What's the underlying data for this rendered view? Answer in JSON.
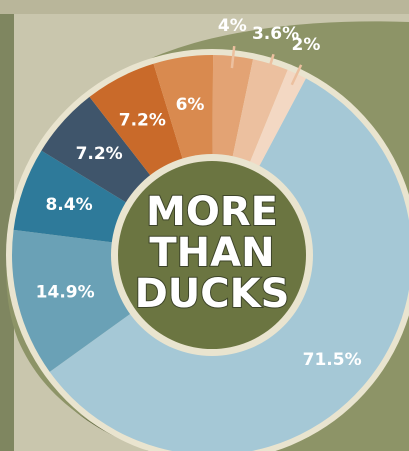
{
  "chart_data": {
    "type": "pie",
    "donut": true,
    "title_lines": [
      "MORE",
      "THAN",
      "DUCKS"
    ],
    "slices": [
      {
        "label": "71.5%",
        "value": 71.5,
        "color": "#a5c8d6"
      },
      {
        "label": "14.9%",
        "value": 14.9,
        "color": "#6aa1b6"
      },
      {
        "label": "8.4%",
        "value": 8.4,
        "color": "#2e7a9a"
      },
      {
        "label": "7.2%",
        "value": 7.2,
        "color": "#3f556b"
      },
      {
        "label": "7.2%",
        "value": 7.2,
        "color": "#c96a2a"
      },
      {
        "label": "6%",
        "value": 6,
        "color": "#d98a4f"
      },
      {
        "label": "4%",
        "value": 4,
        "color": "#e3a374"
      },
      {
        "label": "3.6%",
        "value": 3.6,
        "color": "#ecc09f"
      },
      {
        "label": "2%",
        "value": 2,
        "color": "#f3d8c3"
      }
    ]
  },
  "colors": {
    "background": "#c9c6ad",
    "panel": "#8d9467",
    "panel_dark": "#6f7650",
    "ring_border": "#e9e4cf",
    "center_fill": "#6b7541"
  }
}
